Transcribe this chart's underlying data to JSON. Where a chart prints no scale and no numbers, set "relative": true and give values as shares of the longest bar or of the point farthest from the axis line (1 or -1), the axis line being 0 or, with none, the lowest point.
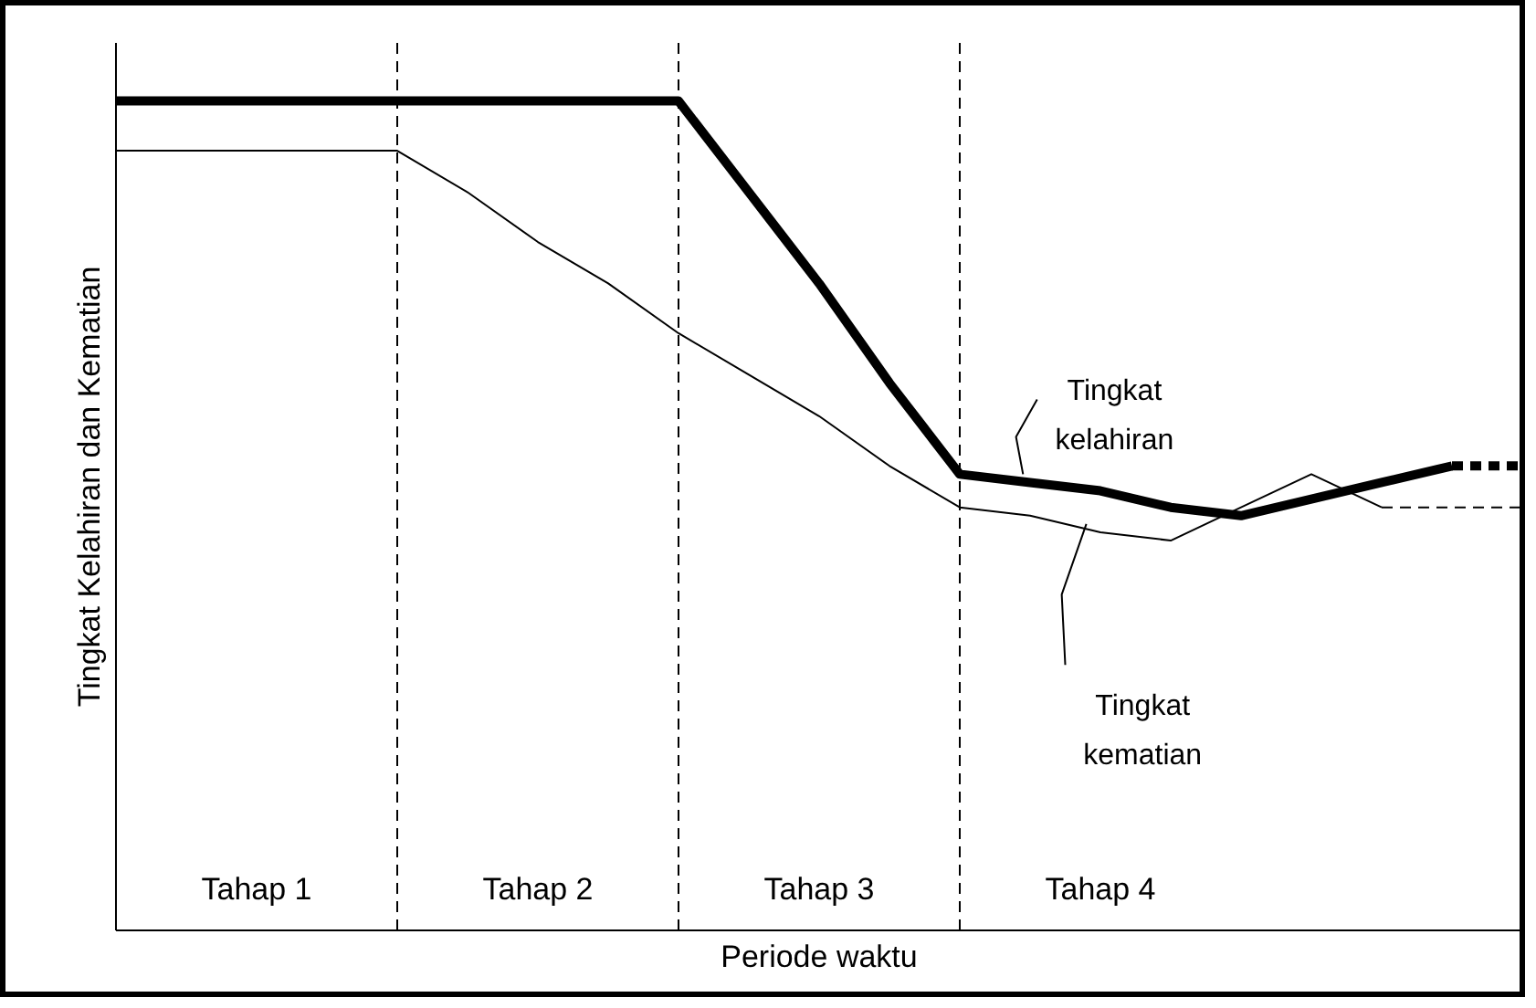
{
  "chart_data": {
    "type": "line",
    "relative": true,
    "xlabel": "Periode waktu",
    "ylabel": "Tingkat Kelahiran dan Kematian",
    "grid": false,
    "legend": false,
    "categories": [
      null,
      null,
      null,
      null,
      null,
      null,
      null,
      null,
      null,
      null,
      null,
      null,
      null,
      null,
      null,
      null,
      null,
      null,
      null,
      null,
      null
    ],
    "series": [
      {
        "name": "Tingkat kelahiran",
        "color": "#000000",
        "values": [
          1.0,
          1.0,
          1.0,
          1.0,
          1.0,
          1.0,
          1.0,
          1.0,
          1.0,
          0.89,
          0.78,
          0.66,
          0.55,
          0.54,
          0.53,
          0.51,
          0.5,
          0.52,
          0.54,
          0.56,
          null
        ]
      },
      {
        "color": "#000000",
        "line_style": "dashed",
        "values": [
          null,
          null,
          null,
          null,
          null,
          null,
          null,
          null,
          null,
          null,
          null,
          null,
          null,
          null,
          null,
          null,
          null,
          null,
          null,
          0.56,
          0.56
        ]
      },
      {
        "name": "Tingkat kematian",
        "color": "#000000",
        "values": [
          0.94,
          0.94,
          0.94,
          0.94,
          0.94,
          0.89,
          0.83,
          0.78,
          0.72,
          0.67,
          0.62,
          0.56,
          0.51,
          0.5,
          0.48,
          0.47,
          0.51,
          0.55,
          0.51,
          null,
          null
        ]
      },
      {
        "color": "#000000",
        "line_style": "dashed",
        "values": [
          null,
          null,
          null,
          null,
          null,
          null,
          null,
          null,
          null,
          null,
          null,
          null,
          null,
          null,
          null,
          null,
          null,
          null,
          0.51,
          0.51,
          0.51
        ]
      }
    ],
    "annotations": [
      "Tahap 1",
      "Tahap 2",
      "Tahap 3",
      "Tahap 4"
    ]
  }
}
